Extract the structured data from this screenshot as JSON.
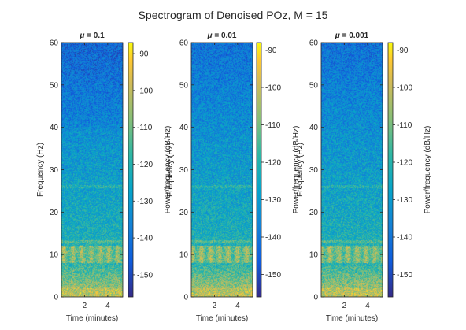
{
  "chart_data": {
    "type": "heatmap",
    "title": "Spectrogram of Denoised POz, M = 15",
    "colormap": "parula",
    "panels": [
      {
        "subtitle_symbol": "μ",
        "subtitle_value": " = 0.1",
        "xlabel": "Time (minutes)",
        "ylabel": "Frequency (Hz)",
        "colorbar_label": "Power/frequency (dB/Hz)",
        "xlim": [
          0,
          5.3
        ],
        "xticks": [
          2,
          4
        ],
        "ylim": [
          0,
          60
        ],
        "yticks": [
          0,
          10,
          20,
          30,
          40,
          50,
          60
        ],
        "clim": [
          -156,
          -87
        ],
        "cticks": [
          -150,
          -140,
          -130,
          -120,
          -110,
          -100,
          -90
        ]
      },
      {
        "subtitle_symbol": "μ",
        "subtitle_value": " = 0.01",
        "xlabel": "Time (minutes)",
        "ylabel": "Frequency (Hz)",
        "colorbar_label": "Power/frequency (dB/Hz)",
        "xlim": [
          0,
          5.3
        ],
        "xticks": [
          2,
          4
        ],
        "ylim": [
          0,
          60
        ],
        "yticks": [
          0,
          10,
          20,
          30,
          40,
          50,
          60
        ],
        "clim": [
          -156,
          -88
        ],
        "cticks": [
          -150,
          -140,
          -130,
          -120,
          -110,
          -100,
          -90
        ]
      },
      {
        "subtitle_symbol": "μ",
        "subtitle_value": " = 0.001",
        "xlabel": "Time (minutes)",
        "ylabel": "Frequency (Hz)",
        "colorbar_label": "Power/frequency (dB/Hz)",
        "xlim": [
          0,
          5.3
        ],
        "xticks": [
          2,
          4
        ],
        "ylim": [
          0,
          60
        ],
        "yticks": [
          0,
          10,
          20,
          30,
          40,
          50,
          60
        ],
        "clim": [
          -156,
          -88
        ],
        "cticks": [
          -150,
          -140,
          -130,
          -120,
          -110,
          -100,
          -90
        ]
      }
    ],
    "features": {
      "alpha_band_hz": [
        8,
        12
      ],
      "line_hz": [
        13,
        26
      ],
      "low_freq_high_power_hz": [
        0,
        8
      ]
    }
  }
}
